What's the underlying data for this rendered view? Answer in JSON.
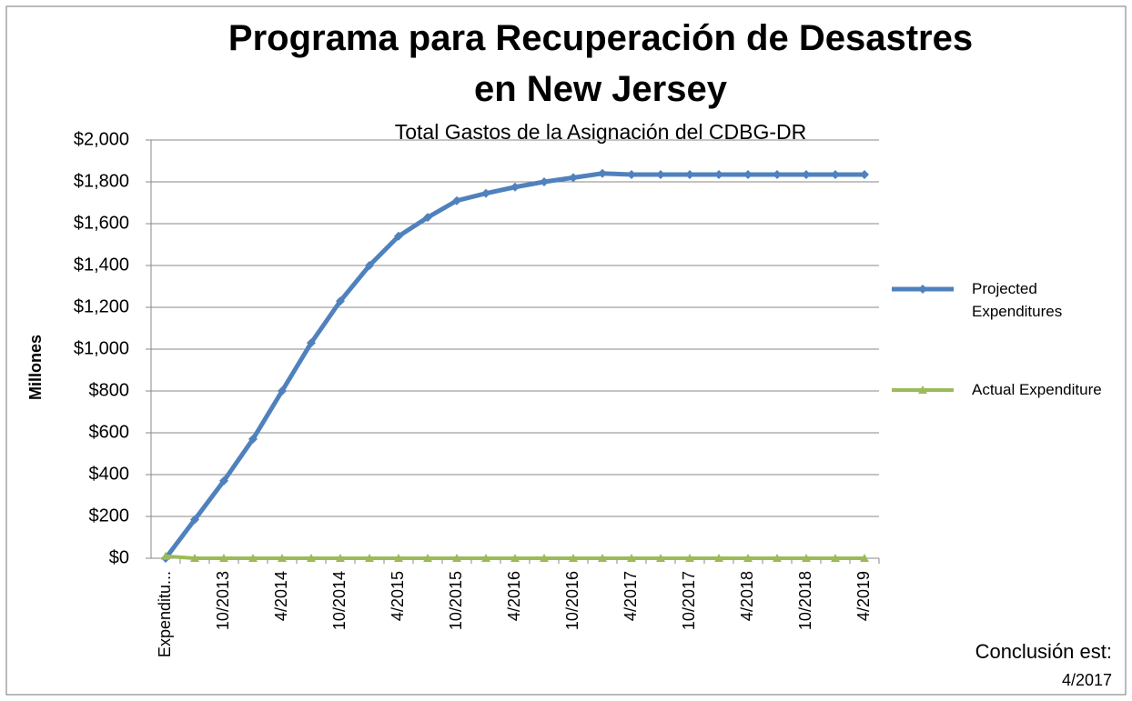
{
  "chart_data": {
    "type": "line",
    "title": "Programa para Recuperación de Desastres en New Jersey",
    "subtitle": "Total Gastos de la Asignación del CDBG-DR",
    "y_label": "Millones",
    "annotation": [
      "Conclusión est:",
      "4/2017"
    ],
    "categories": [
      "Expenditu...",
      null,
      "10/2013",
      null,
      "4/2014",
      null,
      "10/2014",
      null,
      "4/2015",
      null,
      "10/2015",
      null,
      "4/2016",
      null,
      "10/2016",
      null,
      "4/2017",
      null,
      "10/2017",
      null,
      "4/2018",
      null,
      "10/2018",
      null,
      "4/2019"
    ],
    "series": [
      {
        "name": "Projected Expenditures",
        "color": "#4f81bd",
        "values": [
          0,
          185,
          370,
          570,
          800,
          1030,
          1230,
          1400,
          1540,
          1630,
          1710,
          1745,
          1775,
          1800,
          1820,
          1840,
          1835,
          1835,
          1835,
          1835,
          1835,
          1835,
          1835,
          1835,
          1835
        ]
      },
      {
        "name": "Actual Expenditure",
        "color": "#9bbb59",
        "values": [
          10,
          0,
          0,
          0,
          0,
          0,
          0,
          0,
          0,
          0,
          0,
          0,
          0,
          0,
          0,
          0,
          0,
          0,
          0,
          0,
          0,
          0,
          0,
          0,
          0
        ]
      }
    ],
    "ylim": [
      0,
      2000
    ],
    "yticks": [
      {
        "value": 0,
        "label": "$0"
      },
      {
        "value": 200,
        "label": "$200"
      },
      {
        "value": 400,
        "label": "$400"
      },
      {
        "value": 600,
        "label": "$600"
      },
      {
        "value": 800,
        "label": "$800"
      },
      {
        "value": 1000,
        "label": "$1,000"
      },
      {
        "value": 1200,
        "label": "$1,200"
      },
      {
        "value": 1400,
        "label": "$1,400"
      },
      {
        "value": 1600,
        "label": "$1,600"
      },
      {
        "value": 1800,
        "label": "$1,800"
      },
      {
        "value": 2000,
        "label": "$2,000"
      }
    ],
    "grid": true,
    "legend": "right"
  }
}
